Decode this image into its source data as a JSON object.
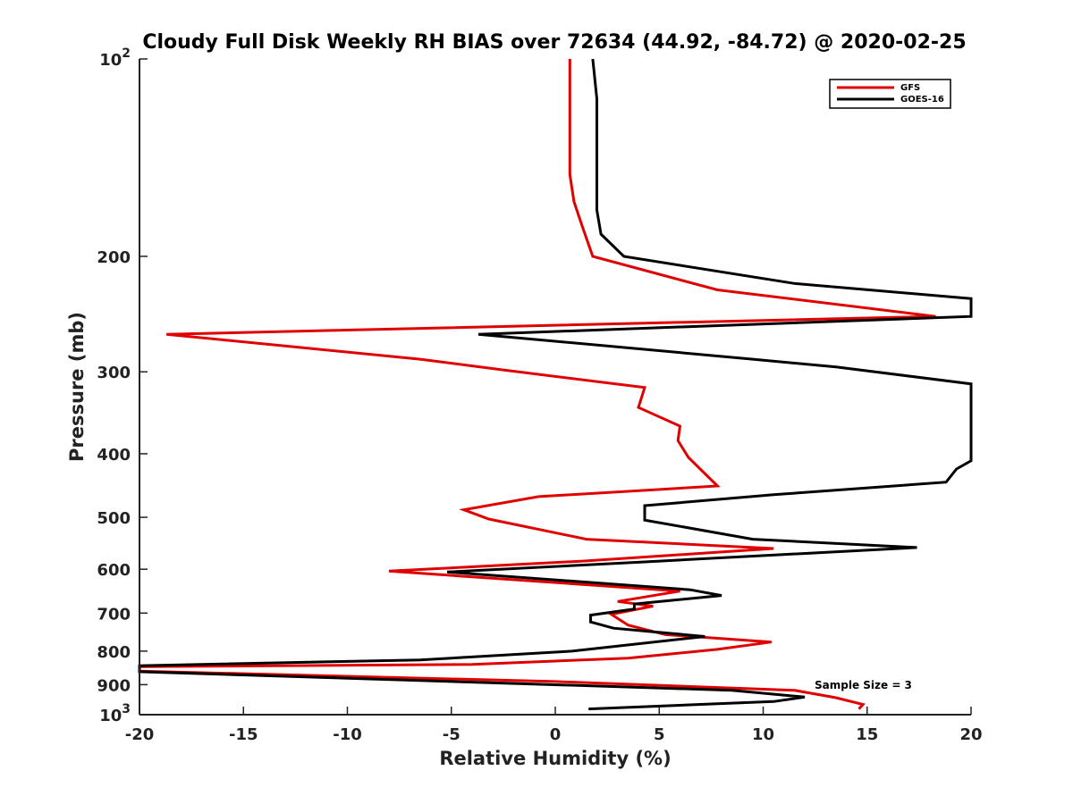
{
  "chart_data": {
    "type": "line",
    "title": "Cloudy Full Disk Weekly RH BIAS over 72634 (44.92, -84.72) @ 2020-02-25",
    "xlabel": "Relative Humidity (%)",
    "ylabel": "Pressure (mb)",
    "xlim": [
      -20,
      20
    ],
    "ylim": [
      100,
      1000
    ],
    "y_scale": "log",
    "y_reversed": true,
    "x_ticks": [
      "-20",
      "-15",
      "-10",
      "-5",
      "0",
      "5",
      "10",
      "15",
      "20"
    ],
    "y_ticks": [
      {
        "value": 100,
        "base": "10",
        "exp": "2"
      },
      {
        "value": 200,
        "label": "200"
      },
      {
        "value": 300,
        "label": "300"
      },
      {
        "value": 400,
        "label": "400"
      },
      {
        "value": 500,
        "label": "500"
      },
      {
        "value": 600,
        "label": "600"
      },
      {
        "value": 700,
        "label": "700"
      },
      {
        "value": 800,
        "label": "800"
      },
      {
        "value": 900,
        "label": "900"
      },
      {
        "value": 1000,
        "base": "10",
        "exp": "3"
      }
    ],
    "legend": {
      "placement": "top-right"
    },
    "annotation": "Sample Size = 3",
    "series": [
      {
        "name": "GFS",
        "color": "#e00000",
        "points": [
          [
            0.7,
            100
          ],
          [
            0.7,
            115
          ],
          [
            0.7,
            130
          ],
          [
            0.7,
            150
          ],
          [
            0.9,
            165
          ],
          [
            1.3,
            180
          ],
          [
            1.8,
            200
          ],
          [
            7.8,
            225
          ],
          [
            18.3,
            247
          ],
          [
            -18.7,
            263
          ],
          [
            -6.5,
            287
          ],
          [
            -2.5,
            298
          ],
          [
            4.3,
            317
          ],
          [
            4.0,
            340
          ],
          [
            6.0,
            363
          ],
          [
            5.9,
            382
          ],
          [
            6.4,
            405
          ],
          [
            7.8,
            448
          ],
          [
            -0.8,
            465
          ],
          [
            -4.4,
            487
          ],
          [
            -3.2,
            503
          ],
          [
            1.5,
            540
          ],
          [
            10.5,
            558
          ],
          [
            1.4,
            583
          ],
          [
            -8.0,
            604
          ],
          [
            6.0,
            648
          ],
          [
            3.0,
            672
          ],
          [
            4.7,
            683
          ],
          [
            2.7,
            703
          ],
          [
            3.5,
            730
          ],
          [
            5.3,
            755
          ],
          [
            10.4,
            775
          ],
          [
            7.8,
            795
          ],
          [
            3.5,
            820
          ],
          [
            -4.0,
            838
          ],
          [
            -20.0,
            845
          ],
          [
            -20.0,
            858
          ],
          [
            0.0,
            890
          ],
          [
            11.5,
            918
          ],
          [
            13.5,
            942
          ],
          [
            14.8,
            965
          ],
          [
            14.6,
            980
          ]
        ]
      },
      {
        "name": "GOES-16",
        "color": "#000000",
        "points": [
          [
            1.8,
            100
          ],
          [
            2.0,
            115
          ],
          [
            2.0,
            130
          ],
          [
            2.0,
            150
          ],
          [
            2.0,
            170
          ],
          [
            2.2,
            185
          ],
          [
            3.3,
            200
          ],
          [
            11.5,
            220
          ],
          [
            20.0,
            232
          ],
          [
            20.0,
            247
          ],
          [
            -3.7,
            263
          ],
          [
            9.5,
            287
          ],
          [
            13.5,
            295
          ],
          [
            20.0,
            313
          ],
          [
            20.0,
            410
          ],
          [
            19.3,
            422
          ],
          [
            18.8,
            442
          ],
          [
            10.5,
            462
          ],
          [
            4.3,
            480
          ],
          [
            4.3,
            505
          ],
          [
            9.5,
            540
          ],
          [
            17.4,
            556
          ],
          [
            4.2,
            585
          ],
          [
            -5.2,
            606
          ],
          [
            6.5,
            645
          ],
          [
            8.0,
            658
          ],
          [
            3.8,
            678
          ],
          [
            3.8,
            690
          ],
          [
            1.7,
            705
          ],
          [
            1.7,
            722
          ],
          [
            2.8,
            738
          ],
          [
            7.2,
            760
          ],
          [
            0.8,
            800
          ],
          [
            -6.5,
            825
          ],
          [
            -20.0,
            842
          ],
          [
            -20.0,
            860
          ],
          [
            8.5,
            918
          ],
          [
            12.0,
            940
          ],
          [
            10.5,
            955
          ],
          [
            1.6,
            980
          ]
        ]
      }
    ]
  }
}
